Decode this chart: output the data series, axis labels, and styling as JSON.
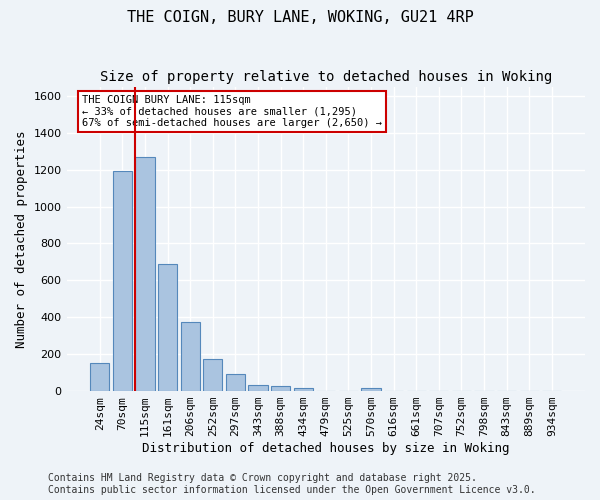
{
  "title": "THE COIGN, BURY LANE, WOKING, GU21 4RP",
  "subtitle": "Size of property relative to detached houses in Woking",
  "xlabel": "Distribution of detached houses by size in Woking",
  "ylabel": "Number of detached properties",
  "categories": [
    "24sqm",
    "70sqm",
    "115sqm",
    "161sqm",
    "206sqm",
    "252sqm",
    "297sqm",
    "343sqm",
    "388sqm",
    "434sqm",
    "479sqm",
    "525sqm",
    "570sqm",
    "616sqm",
    "661sqm",
    "707sqm",
    "752sqm",
    "798sqm",
    "843sqm",
    "889sqm",
    "934sqm"
  ],
  "values": [
    150,
    1195,
    1270,
    690,
    375,
    175,
    95,
    35,
    25,
    18,
    0,
    0,
    15,
    0,
    0,
    0,
    0,
    0,
    0,
    0,
    0
  ],
  "bar_color": "#aac4e0",
  "bar_edge_color": "#5588bb",
  "highlight_index": 2,
  "red_line_index": 2,
  "annotation_text": "THE COIGN BURY LANE: 115sqm\n← 33% of detached houses are smaller (1,295)\n67% of semi-detached houses are larger (2,650) →",
  "annotation_box_color": "#ffffff",
  "annotation_box_edge_color": "#cc0000",
  "red_line_color": "#cc0000",
  "ylim": [
    0,
    1650
  ],
  "yticks": [
    0,
    200,
    400,
    600,
    800,
    1000,
    1200,
    1400,
    1600
  ],
  "footer_line1": "Contains HM Land Registry data © Crown copyright and database right 2025.",
  "footer_line2": "Contains public sector information licensed under the Open Government Licence v3.0.",
  "bg_color": "#eef3f8",
  "grid_color": "#ffffff",
  "title_fontsize": 11,
  "subtitle_fontsize": 10,
  "axis_label_fontsize": 9,
  "tick_fontsize": 8,
  "footer_fontsize": 7
}
